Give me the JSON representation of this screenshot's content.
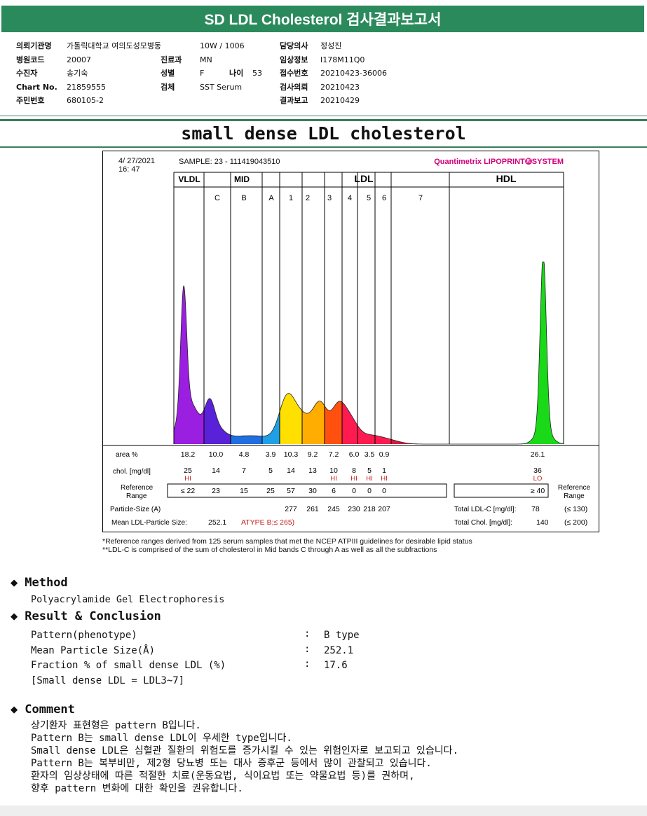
{
  "header": {
    "title": "SD LDL Cholesterol 검사결과보고서"
  },
  "info": {
    "col1": [
      {
        "label": "의뢰기관명",
        "value": "가톨릭대학교 여의도성모병동"
      },
      {
        "label": "병원코드",
        "value": "20007"
      },
      {
        "label": "수진자",
        "value": "송기숙"
      },
      {
        "label": "Chart No.",
        "value": "21859555"
      },
      {
        "label": "주민번호",
        "value": "680105-2"
      }
    ],
    "col2": [
      {
        "label": "",
        "value": "10W / 1006"
      },
      {
        "label": "진료과",
        "value": "MN"
      },
      {
        "label": "성별",
        "value": "F"
      },
      {
        "label": "검체",
        "value": "SST Serum"
      }
    ],
    "age_label": "나이",
    "age_value": "53",
    "col3": [
      {
        "label": "담당의사",
        "value": "정성진"
      },
      {
        "label": "임상정보",
        "value": "I178M11Q0"
      },
      {
        "label": "접수번호",
        "value": "20210423-36006"
      },
      {
        "label": "검사의뢰",
        "value": "20210423"
      },
      {
        "label": "결과보고",
        "value": "20210429"
      }
    ]
  },
  "subtitle": "small dense LDL cholesterol",
  "figure": {
    "date": "4/ 27/2021",
    "time": "16: 47",
    "sample": "SAMPLE:    23 - 111419043510",
    "brand": "Quantimetrix LIPOPRINT",
    "brand_suffix": "SYSTEM",
    "brand_icon": "Ⓡ",
    "groups": {
      "vldl": "VLDL",
      "mid": "MID",
      "ldl": "LDL",
      "hdl": "HDL"
    },
    "bands": [
      "C",
      "B",
      "A",
      "1",
      "2",
      "3",
      "4",
      "5",
      "6",
      "7"
    ],
    "row_labels": {
      "area": "area %",
      "chol": "chol. [mg/dl]",
      "ref": "Reference Range",
      "particle": "Particle-Size (A)",
      "mean": "Mean LDL-Particle Size:",
      "total_ldl": "Total LDL-C [mg/dl]:",
      "total_chol": "Total Chol. [mg/dl]:",
      "ref_right": "Reference Range"
    },
    "area": [
      "18.2",
      "10.0",
      "4.8",
      "3.9",
      "10.3",
      "9.2",
      "7.2",
      "6.0",
      "3.5",
      "0.9",
      "26.1"
    ],
    "chol": [
      "25",
      "14",
      "7",
      "5",
      "14",
      "13",
      "10",
      "8",
      "5",
      "1",
      "36"
    ],
    "flags": [
      "HI",
      "",
      "",
      "",
      "",
      "",
      "HI",
      "HI",
      "HI",
      "HI",
      "LO"
    ],
    "ref": [
      "≤ 22",
      "23",
      "15",
      "25",
      "57",
      "30",
      "6",
      "0",
      "0",
      "0",
      "≥ 40"
    ],
    "particle": [
      "277",
      "261",
      "245",
      "230",
      "218",
      "207"
    ],
    "mean_value": "252.1",
    "mean_type": "ATYPE B;≤ 265)",
    "total_ldl_value": "78",
    "total_ldl_ref": "(≤ 130)",
    "total_chol_value": "140",
    "total_chol_ref": "(≤ 200)"
  },
  "chart_data": {
    "type": "area",
    "title": "",
    "series": [
      {
        "name": "VLDL",
        "area_pct": 18.2
      },
      {
        "name": "C",
        "area_pct": 10.0
      },
      {
        "name": "B",
        "area_pct": 4.8
      },
      {
        "name": "A",
        "area_pct": 3.9
      },
      {
        "name": "1",
        "area_pct": 10.3
      },
      {
        "name": "2",
        "area_pct": 9.2
      },
      {
        "name": "3",
        "area_pct": 7.2
      },
      {
        "name": "4",
        "area_pct": 6.0
      },
      {
        "name": "5",
        "area_pct": 3.5
      },
      {
        "name": "6",
        "area_pct": 0.9
      },
      {
        "name": "HDL",
        "area_pct": 26.1
      }
    ],
    "colors": {
      "vldl": "#9a1fe0",
      "c": "#5a22d8",
      "b": "#1f6fe0",
      "a": "#1fa0e6",
      "b1": "#ffe000",
      "b2": "#ffad00",
      "b3": "#ff5010",
      "b4": "#ff1a50",
      "b5": "#ff1a50",
      "b6": "#ff1a50",
      "b7": "#d81840",
      "hdl": "#19d919"
    }
  },
  "footnote": {
    "line1": "*Reference ranges derived from 125 serum samples that met the NCEP ATPIII guidelines for desirable lipid status",
    "line2": "**LDL-C is comprised of the sum of cholesterol in Mid bands C through A as well as all the subfractions"
  },
  "method": {
    "heading": "Method",
    "text": "Polyacrylamide Gel Electrophoresis"
  },
  "result": {
    "heading": "Result & Conclusion",
    "rows": [
      {
        "label": "Pattern(phenotype)",
        "value": "B type"
      },
      {
        "label": "Mean Particle Size(Å)",
        "value": "252.1"
      },
      {
        "label": "Fraction % of small dense LDL (%)",
        "value": "17.6"
      }
    ],
    "sep": ":",
    "note": "[Small dense LDL = LDL3~7]"
  },
  "comment": {
    "heading": "Comment",
    "lines": [
      "상기환자 표현형은 pattern B입니다.",
      "Pattern B는 small dense LDL이 우세한 type입니다.",
      "Small dense LDL은 심혈관 질환의 위험도를 증가시킬 수 있는 위험인자로 보고되고 있습니다.",
      "Pattern B는 복부비만, 제2형 당뇨병 또는 대사 증후군 등에서 많이 관찰되고 있습니다.",
      "환자의 임상상태에 따른 적절한 치료(운동요법, 식이요법 또는 약물요법 등)를 권하며,",
      "향후 pattern 변화에 대한 확인을 권유합니다."
    ]
  }
}
